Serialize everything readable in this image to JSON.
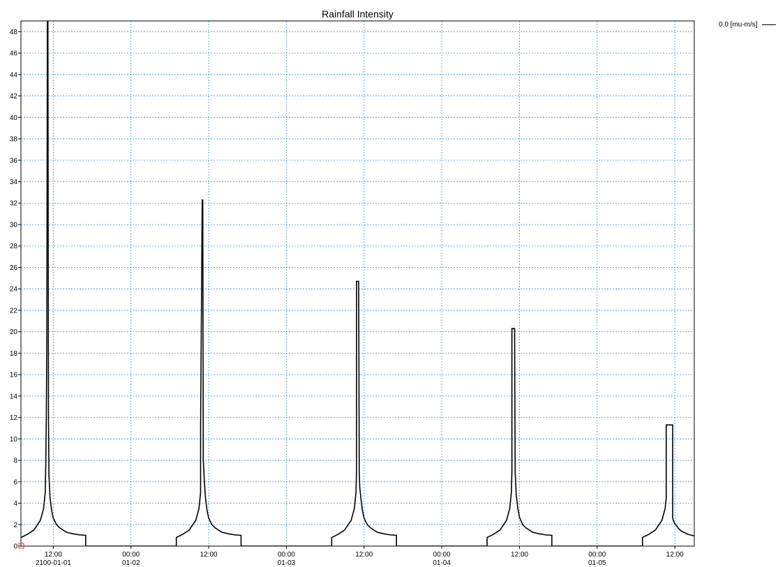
{
  "chart_data": {
    "type": "line",
    "title": "Rainfall Intensity",
    "xlabel": "",
    "ylabel": "",
    "ylim": [
      0,
      49
    ],
    "yticks": [
      0,
      2,
      4,
      6,
      8,
      10,
      12,
      14,
      16,
      18,
      20,
      22,
      24,
      26,
      28,
      30,
      32,
      34,
      36,
      38,
      40,
      42,
      44,
      46,
      48
    ],
    "xlim": [
      "2100-01-01 07:00",
      "2100-01-05 15:00"
    ],
    "xticks": [
      {
        "t": "2100-01-01 12:00",
        "time": "12:00",
        "date": "2100-01-01"
      },
      {
        "t": "2100-01-02 00:00",
        "time": "00:00",
        "date": "01-02"
      },
      {
        "t": "2100-01-02 12:00",
        "time": "12:00",
        "date": ""
      },
      {
        "t": "2100-01-03 00:00",
        "time": "00:00",
        "date": "01-03"
      },
      {
        "t": "2100-01-03 12:00",
        "time": "12:00",
        "date": ""
      },
      {
        "t": "2100-01-04 00:00",
        "time": "00:00",
        "date": "01-04"
      },
      {
        "t": "2100-01-04 12:00",
        "time": "12:00",
        "date": ""
      },
      {
        "t": "2100-01-05 00:00",
        "time": "00:00",
        "date": "01-05"
      },
      {
        "t": "2100-01-05 12:00",
        "time": "12:00",
        "date": ""
      }
    ],
    "grid": true,
    "legend_position": "top-right",
    "series": [
      {
        "name": "0.0 [mu-m/s]",
        "color": "#000000",
        "x": [
          "2100-01-01 07:00",
          "2100-01-01 08:00",
          "2100-01-01 09:00",
          "2100-01-01 10:00",
          "2100-01-01 10:30",
          "2100-01-01 10:45",
          "2100-01-01 10:50",
          "2100-01-01 10:55",
          "2100-01-01 11:00",
          "2100-01-01 11:05",
          "2100-01-01 11:10",
          "2100-01-01 11:15",
          "2100-01-01 11:20",
          "2100-01-01 11:30",
          "2100-01-01 11:45",
          "2100-01-01 12:00",
          "2100-01-01 12:30",
          "2100-01-01 13:00",
          "2100-01-01 14:00",
          "2100-01-01 15:00",
          "2100-01-01 16:00",
          "2100-01-01 17:00",
          "2100-01-01 17:00",
          "2100-01-02 07:00",
          "2100-01-02 07:00",
          "2100-01-02 08:00",
          "2100-01-02 09:00",
          "2100-01-02 10:00",
          "2100-01-02 10:30",
          "2100-01-02 10:45",
          "2100-01-02 10:45",
          "2100-01-02 11:00",
          "2100-01-02 11:05",
          "2100-01-02 11:10",
          "2100-01-02 11:20",
          "2100-01-02 11:30",
          "2100-01-02 11:45",
          "2100-01-02 12:00",
          "2100-01-02 12:30",
          "2100-01-02 13:00",
          "2100-01-02 14:00",
          "2100-01-02 15:00",
          "2100-01-02 16:00",
          "2100-01-02 17:00",
          "2100-01-02 17:00",
          "2100-01-03 07:00",
          "2100-01-03 07:00",
          "2100-01-03 08:00",
          "2100-01-03 09:00",
          "2100-01-03 10:00",
          "2100-01-03 10:30",
          "2100-01-03 10:45",
          "2100-01-03 10:50",
          "2100-01-03 10:50",
          "2100-01-03 11:10",
          "2100-01-03 11:15",
          "2100-01-03 11:20",
          "2100-01-03 11:30",
          "2100-01-03 11:45",
          "2100-01-03 12:00",
          "2100-01-03 12:30",
          "2100-01-03 13:00",
          "2100-01-03 14:00",
          "2100-01-03 15:00",
          "2100-01-03 16:00",
          "2100-01-03 17:00",
          "2100-01-03 17:00",
          "2100-01-04 07:00",
          "2100-01-04 07:00",
          "2100-01-04 08:00",
          "2100-01-04 09:00",
          "2100-01-04 10:00",
          "2100-01-04 10:30",
          "2100-01-04 10:45",
          "2100-01-04 10:50",
          "2100-01-04 10:50",
          "2100-01-04 11:15",
          "2100-01-04 11:20",
          "2100-01-04 11:30",
          "2100-01-04 11:45",
          "2100-01-04 12:00",
          "2100-01-04 12:30",
          "2100-01-04 13:00",
          "2100-01-04 14:00",
          "2100-01-04 15:00",
          "2100-01-04 16:00",
          "2100-01-04 17:00",
          "2100-01-04 17:00",
          "2100-01-05 07:00",
          "2100-01-05 07:00",
          "2100-01-05 08:00",
          "2100-01-05 09:00",
          "2100-01-05 10:00",
          "2100-01-05 10:30",
          "2100-01-05 10:40",
          "2100-01-05 10:40",
          "2100-01-05 11:40",
          "2100-01-05 11:40",
          "2100-01-05 11:45",
          "2100-01-05 12:00",
          "2100-01-05 12:30",
          "2100-01-05 13:00",
          "2100-01-05 14:00",
          "2100-01-05 15:00"
        ],
        "y": [
          0.8,
          1.1,
          1.5,
          2.4,
          3.5,
          5.0,
          7.5,
          12.0,
          19.0,
          49.0,
          49.0,
          12.0,
          6.5,
          4.5,
          3.3,
          2.6,
          2.0,
          1.7,
          1.3,
          1.15,
          1.05,
          1.0,
          0.0,
          0.0,
          0.8,
          1.1,
          1.5,
          2.4,
          3.5,
          5.0,
          11.0,
          32.3,
          32.3,
          8.0,
          6.0,
          4.5,
          3.3,
          2.6,
          2.0,
          1.7,
          1.3,
          1.15,
          1.05,
          1.0,
          0.0,
          0.0,
          0.8,
          1.1,
          1.5,
          2.4,
          3.5,
          5.0,
          7.0,
          24.7,
          24.7,
          7.0,
          5.5,
          4.5,
          3.3,
          2.6,
          2.0,
          1.7,
          1.3,
          1.15,
          1.05,
          1.0,
          0.0,
          0.0,
          0.8,
          1.1,
          1.5,
          2.4,
          3.5,
          5.0,
          7.0,
          20.3,
          20.3,
          7.0,
          4.8,
          3.5,
          2.7,
          2.0,
          1.7,
          1.3,
          1.15,
          1.05,
          1.0,
          0.0,
          0.0,
          0.8,
          1.1,
          1.5,
          2.4,
          3.5,
          4.5,
          11.3,
          11.3,
          2.6,
          2.4,
          2.1,
          1.7,
          1.4,
          1.1,
          0.95
        ]
      }
    ]
  }
}
